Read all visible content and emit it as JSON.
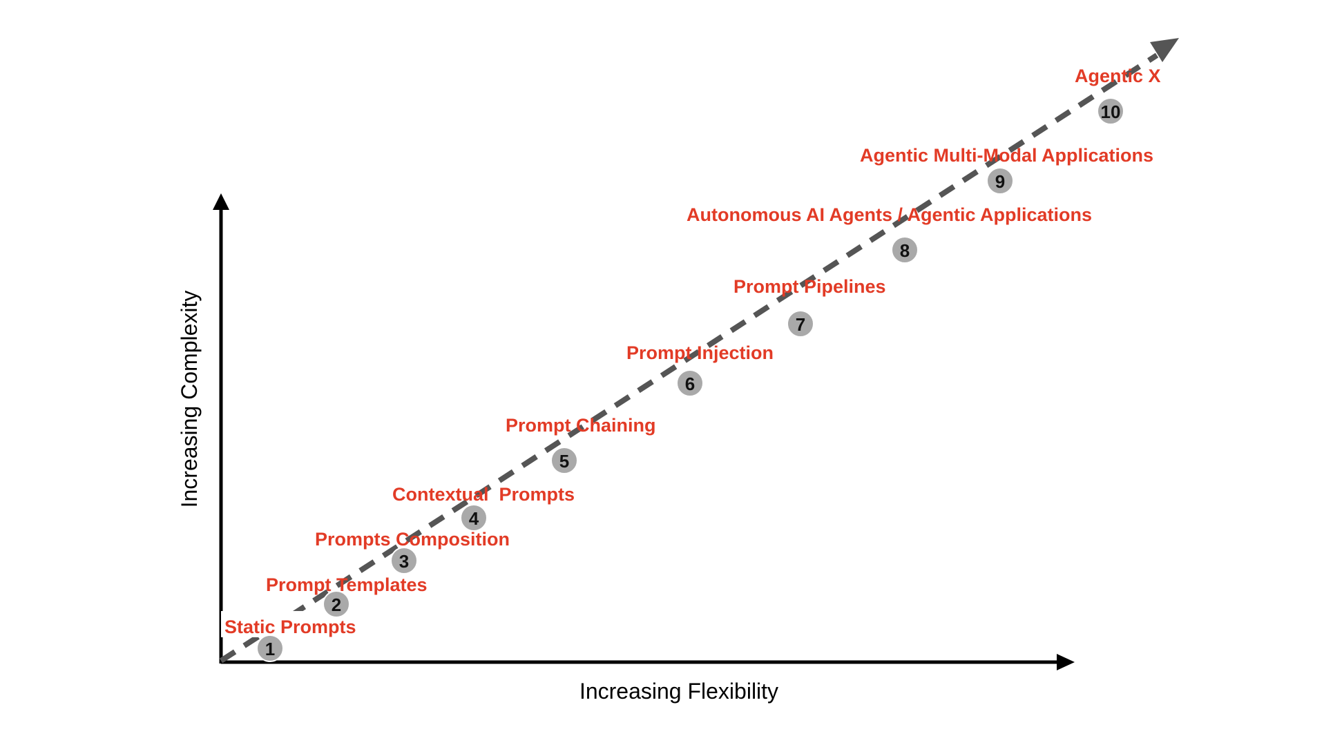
{
  "x_axis_label": "Increasing Flexibility",
  "y_axis_label": "Increasing Complexity",
  "colors": {
    "label": "#e23b26",
    "badge_fill": "#a9a9a9",
    "badge_stroke": "#ffffff",
    "number": "#111111",
    "arrow": "#555555",
    "axis": "#000000"
  },
  "stages": [
    {
      "number": "1",
      "label": "Static Prompts"
    },
    {
      "number": "2",
      "label": "Prompt Templates"
    },
    {
      "number": "3",
      "label": "Prompts Composition"
    },
    {
      "number": "4",
      "label": "Contextual  Prompts"
    },
    {
      "number": "5",
      "label": "Prompt Chaining"
    },
    {
      "number": "6",
      "label": "Prompt Injection"
    },
    {
      "number": "7",
      "label": "Prompt Pipelines"
    },
    {
      "number": "8",
      "label": "Autonomous AI Agents / Agentic Applications"
    },
    {
      "number": "9",
      "label": "Agentic Multi-Modal Applications"
    },
    {
      "number": "10",
      "label": "Agentic X"
    }
  ]
}
